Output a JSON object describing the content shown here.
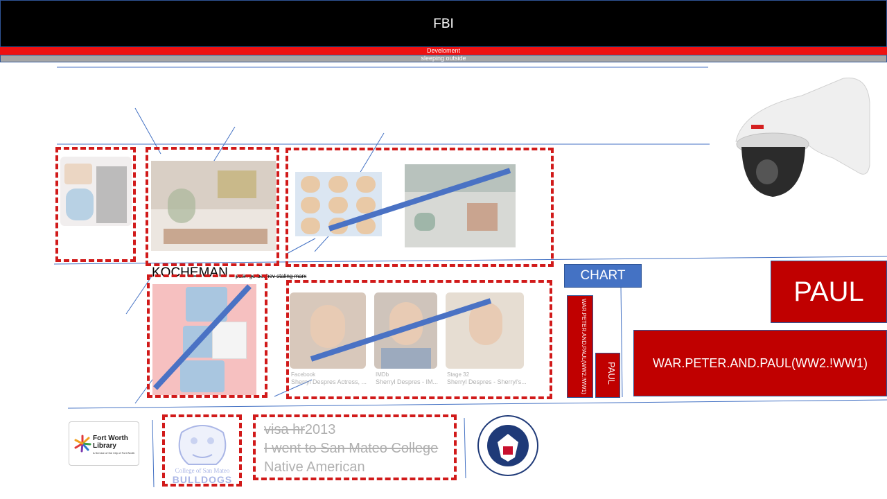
{
  "header": {
    "title": "FBI"
  },
  "bars": {
    "red_text": "Develoment",
    "gray_text": "sleeping outside"
  },
  "annotations": {
    "kocheman": "KOCHEMAN",
    "kocheman_small": "putin gorbachev staling marx"
  },
  "chart": {
    "button": "CHART",
    "bar1": "WAR.PETER.AND.PAUL(WW2.!WW1)",
    "bar2": "PAUL",
    "paul_box": "PAUL",
    "war_box": "WAR.PETER.AND.PAUL(WW2.!WW1)"
  },
  "captions": [
    {
      "source": "Facebook",
      "title": "Sherryl Despres Actress, ..."
    },
    {
      "source": "IMDb",
      "title": "Sherryl Despres - IM..."
    },
    {
      "source": "Stage 32",
      "title": "Sherryl Despres - Sherryl's..."
    }
  ],
  "bottom": {
    "line1_strike": "visa hr",
    "line1_year": "2013",
    "line2": "I went to San Mateo College",
    "line3": "Native American",
    "library_name": "Fort Worth Library",
    "library_sub": "A Service of the City of Fort Worth",
    "college_name": "College of San Mateo",
    "college_team": "BULLDOGS",
    "dhs_label": "U.S. DEPARTMENT OF HOMELAND SECURITY"
  },
  "colors": {
    "accent_red": "#c00000",
    "dash_red": "#d11a1a",
    "accent_blue": "#4472c4",
    "line_blue": "#4a72c4"
  }
}
